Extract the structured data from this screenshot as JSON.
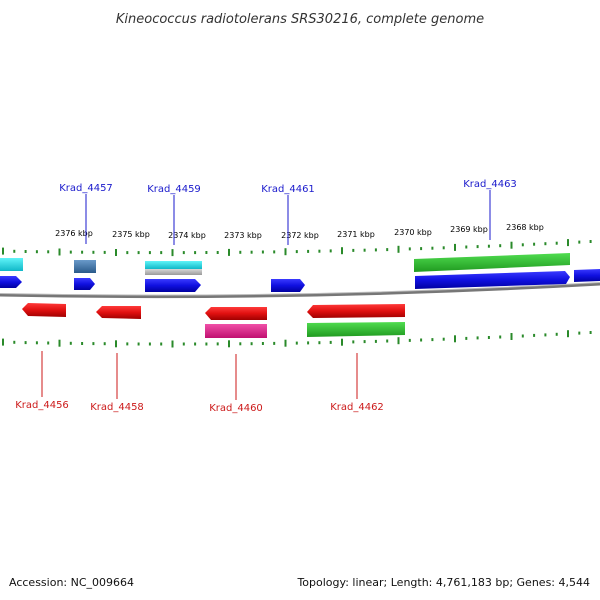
{
  "title": "Kineococcus radiotolerans SRS30216, complete genome",
  "footer": {
    "accession": "Accession: NC_009664",
    "topology": "Topology: linear; Length: 4,761,183 bp; Genes: 4,544"
  },
  "kbp_ticks": [
    "2376 kbp",
    "2375 kbp",
    "2374 kbp",
    "2373 kbp",
    "2372 kbp",
    "2371 kbp",
    "2370 kbp",
    "2369 kbp",
    "2368 kbp"
  ],
  "top_gene_labels": [
    "Krad_4457",
    "Krad_4459",
    "Krad_4461",
    "Krad_4463"
  ],
  "bottom_gene_labels": [
    "Krad_4456",
    "Krad_4458",
    "Krad_4460",
    "Krad_4462"
  ],
  "colors": {
    "forward_strand": "#1010e0",
    "reverse_strand": "#e01010",
    "cyan": "#20e0e8",
    "steel_blue": "#4a7aaa",
    "green": "#30c030",
    "magenta": "#e0208a",
    "gray": "#b8b8b8",
    "backbone": "#8a8a8a",
    "tick": "#2a8a2a",
    "label_top": "#1a1acc",
    "label_bottom": "#cc1a1a"
  }
}
